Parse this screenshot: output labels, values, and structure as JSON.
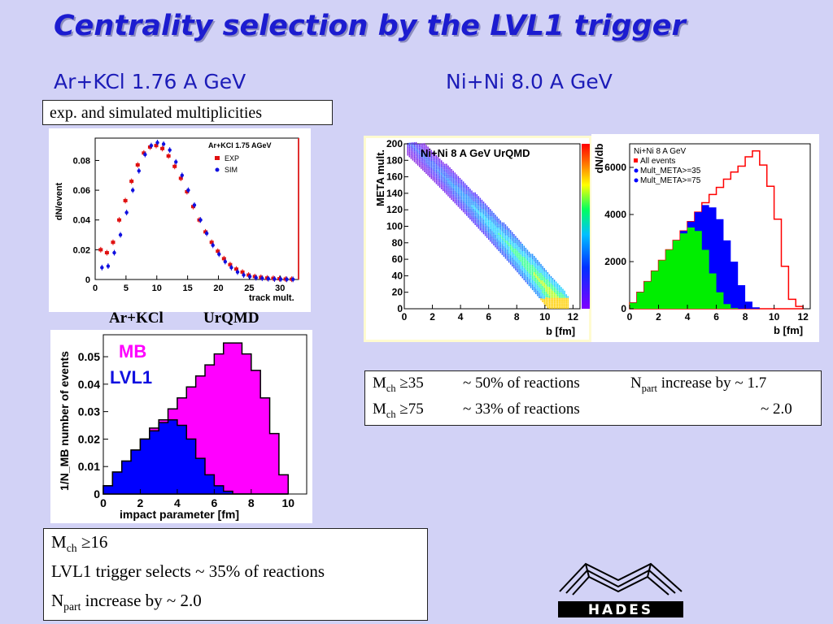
{
  "title": "Centrality selection by the LVL1 trigger",
  "subtitle_left": "Ar+KCl 1.76 A GeV",
  "subtitle_right": "Ni+Ni 8.0 A GeV",
  "box_mult": "exp. and simulated multiplicities",
  "label_arkcl": "Ar+KCl",
  "label_urqmd": "UrQMD",
  "table": {
    "row1": {
      "m": "M",
      "m_sub": "ch",
      "cond": " ≥35",
      "frac": "~ 50% of reactions",
      "n": "N",
      "n_sub": "part",
      "inc": " increase by ~ 1.7"
    },
    "row2": {
      "m": "M",
      "m_sub": "ch",
      "cond": " ≥75",
      "frac": "~ 33% of reactions",
      "inc": "~ 2.0"
    }
  },
  "bottom": {
    "line1_m": "M",
    "line1_sub": "ch",
    "line1_cond": " ≥16",
    "line2": "LVL1 trigger selects  ~ 35% of reactions",
    "line3_n": "N",
    "line3_sub": "part",
    "line3_rest": " increase by ~ 2.0"
  },
  "logo_text": "HADES",
  "chart_data": [
    {
      "type": "scatter",
      "title": "Ar+KCl 1.75 AGeV",
      "xlabel": "track mult.",
      "ylabel": "dN/event",
      "xlim": [
        0,
        33
      ],
      "ylim": [
        0,
        0.095
      ],
      "xticks": [
        "0",
        "5",
        "10",
        "15",
        "20",
        "25",
        "30"
      ],
      "yticks": [
        "0",
        "0.02",
        "0.04",
        "0.06",
        "0.08"
      ],
      "legend": "top-right",
      "series": [
        {
          "name": "EXP",
          "color": "#e01010",
          "x": [
            1,
            2,
            3,
            4,
            5,
            6,
            7,
            8,
            9,
            10,
            11,
            12,
            13,
            14,
            15,
            16,
            17,
            18,
            19,
            20,
            21,
            22,
            23,
            24,
            25,
            26,
            27,
            28,
            29,
            30,
            31,
            32
          ],
          "values": [
            0.02,
            0.018,
            0.025,
            0.04,
            0.053,
            0.066,
            0.077,
            0.085,
            0.089,
            0.09,
            0.088,
            0.083,
            0.076,
            0.068,
            0.059,
            0.049,
            0.04,
            0.032,
            0.025,
            0.019,
            0.014,
            0.01,
            0.007,
            0.005,
            0.003,
            0.002,
            0.0015,
            0.001,
            0.0008,
            0.0005,
            0.0003,
            0.0002
          ]
        },
        {
          "name": "SIM",
          "color": "#1010e0",
          "x": [
            1,
            2,
            3,
            4,
            5,
            6,
            7,
            8,
            9,
            10,
            11,
            12,
            13,
            14,
            15,
            16,
            17,
            18,
            19,
            20,
            21,
            22,
            23,
            24,
            25,
            26,
            27,
            28,
            29,
            30,
            31,
            32
          ],
          "values": [
            0.008,
            0.009,
            0.018,
            0.03,
            0.045,
            0.06,
            0.073,
            0.084,
            0.09,
            0.092,
            0.091,
            0.087,
            0.079,
            0.07,
            0.06,
            0.05,
            0.04,
            0.031,
            0.023,
            0.017,
            0.012,
            0.008,
            0.005,
            0.003,
            0.002,
            0.0012,
            0.0008,
            0.0005,
            0.0003,
            0.0002,
            0.0001,
            0.0001
          ]
        }
      ]
    },
    {
      "type": "area",
      "xlabel": "impact parameter [fm]",
      "ylabel": "1/N_MB number of events",
      "xlim": [
        0,
        11
      ],
      "ylim": [
        0,
        0.058
      ],
      "xticks": [
        "0",
        "2",
        "4",
        "6",
        "8",
        "10"
      ],
      "yticks": [
        "0",
        "0.01",
        "0.02",
        "0.03",
        "0.04",
        "0.05"
      ],
      "legend": "top-left",
      "x": [
        0.25,
        0.75,
        1.25,
        1.75,
        2.25,
        2.75,
        3.25,
        3.75,
        4.25,
        4.75,
        5.25,
        5.75,
        6.25,
        6.75,
        7.25,
        7.75,
        8.25,
        8.75,
        9.25,
        9.75
      ],
      "series": [
        {
          "name": "MB",
          "color": "#ff00ff",
          "values": [
            0.003,
            0.008,
            0.012,
            0.016,
            0.02,
            0.024,
            0.027,
            0.031,
            0.035,
            0.039,
            0.043,
            0.047,
            0.051,
            0.055,
            0.055,
            0.051,
            0.045,
            0.035,
            0.022,
            0.007
          ]
        },
        {
          "name": "LVL1",
          "color": "#0000ff",
          "values": [
            0.003,
            0.008,
            0.012,
            0.016,
            0.02,
            0.023,
            0.026,
            0.027,
            0.025,
            0.02,
            0.013,
            0.007,
            0.003,
            0.001,
            0,
            0,
            0,
            0,
            0,
            0
          ]
        }
      ]
    },
    {
      "type": "heatmap",
      "title": "Ni+Ni 8 A GeV UrQMD",
      "xlabel": "b [fm]",
      "ylabel": "META mult.",
      "xlim": [
        0,
        12.5
      ],
      "ylim": [
        0,
        200
      ],
      "xticks": [
        "0",
        "2",
        "4",
        "6",
        "8",
        "10",
        "12"
      ],
      "yticks": [
        "0",
        "20",
        "40",
        "60",
        "80",
        "100",
        "120",
        "140",
        "160",
        "180",
        "200"
      ]
    },
    {
      "type": "area",
      "title": "Ni+Ni 8 A GeV",
      "xlabel": "b [fm]",
      "ylabel": "dN/db",
      "xlim": [
        0,
        12.5
      ],
      "ylim": [
        0,
        7000
      ],
      "xticks": [
        "0",
        "2",
        "4",
        "6",
        "8",
        "10",
        "12"
      ],
      "yticks": [
        "0",
        "2000",
        "4000",
        "6000"
      ],
      "legend": "top-left",
      "x": [
        0.25,
        0.75,
        1.25,
        1.75,
        2.25,
        2.75,
        3.25,
        3.75,
        4.25,
        4.75,
        5.25,
        5.75,
        6.25,
        6.75,
        7.25,
        7.75,
        8.25,
        8.75,
        9.25,
        9.75,
        10.25,
        10.75,
        11.25,
        11.75
      ],
      "series": [
        {
          "name": "All events",
          "color": "#ff0000",
          "values": [
            250,
            700,
            1150,
            1600,
            2050,
            2500,
            2900,
            3300,
            3700,
            4100,
            4500,
            4850,
            5150,
            5500,
            5800,
            6050,
            6450,
            6700,
            6100,
            5200,
            3800,
            1800,
            400,
            100
          ]
        },
        {
          "name": "Mult_META>=35",
          "color": "#0000ff",
          "values": [
            250,
            700,
            1150,
            1600,
            2050,
            2500,
            2900,
            3300,
            3700,
            4100,
            4400,
            4300,
            3800,
            2900,
            2000,
            1000,
            300,
            60,
            0,
            0,
            0,
            0,
            0,
            0
          ]
        },
        {
          "name": "Mult_META>=75",
          "color": "#00ee00",
          "values": [
            250,
            700,
            1150,
            1600,
            2050,
            2500,
            2900,
            3200,
            3450,
            3300,
            2500,
            1500,
            700,
            200,
            30,
            0,
            0,
            0,
            0,
            0,
            0,
            0,
            0,
            0
          ]
        }
      ]
    }
  ]
}
